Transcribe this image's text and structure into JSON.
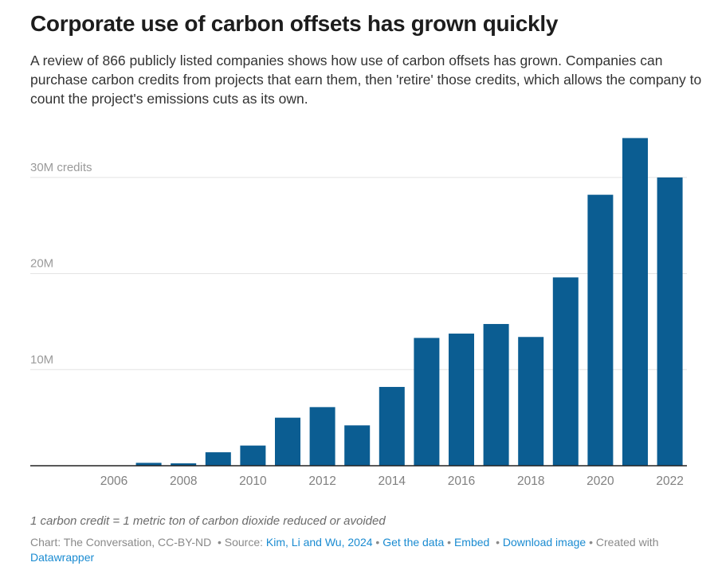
{
  "title": "Corporate use of carbon offsets has grown quickly",
  "subtitle": "A review of 866 publicly listed companies shows how use of carbon offsets has grown. Companies can purchase carbon credits from projects that earn them, then 'retire' those credits, which allows the company to count the project's emissions cuts as its own.",
  "note": "1 carbon credit = 1 metric ton of carbon dioxide reduced or avoided",
  "footer": {
    "credit": "Chart: The Conversation, CC-BY-ND",
    "source_label": "• Source:",
    "source_link": "Kim, Li and Wu, 2024",
    "get_data": "Get the data",
    "embed": "Embed",
    "download": "Download image",
    "created": "• Created with",
    "datawrapper": "Datawrapper"
  },
  "chart_data": {
    "type": "bar",
    "title": "Corporate use of carbon offsets has grown quickly",
    "xlabel": "",
    "ylabel": "credits",
    "categories": [
      2006,
      2007,
      2008,
      2009,
      2010,
      2011,
      2012,
      2013,
      2014,
      2015,
      2016,
      2017,
      2018,
      2019,
      2020,
      2021,
      2022
    ],
    "values": [
      0,
      0.3,
      0.25,
      1.4,
      2.1,
      5.0,
      6.1,
      4.2,
      8.2,
      13.3,
      13.75,
      14.75,
      13.4,
      19.6,
      28.2,
      34.1,
      30.0
    ],
    "unit": "million credits",
    "ylim": [
      0,
      35
    ],
    "yticks": [
      {
        "v": 10,
        "label": "10M"
      },
      {
        "v": 20,
        "label": "20M"
      },
      {
        "v": 30,
        "label": "30M credits"
      }
    ],
    "xticks": [
      "2006",
      "2008",
      "2010",
      "2012",
      "2014",
      "2016",
      "2018",
      "2020",
      "2022"
    ],
    "bar_color": "#0b5d92",
    "grid": true
  }
}
